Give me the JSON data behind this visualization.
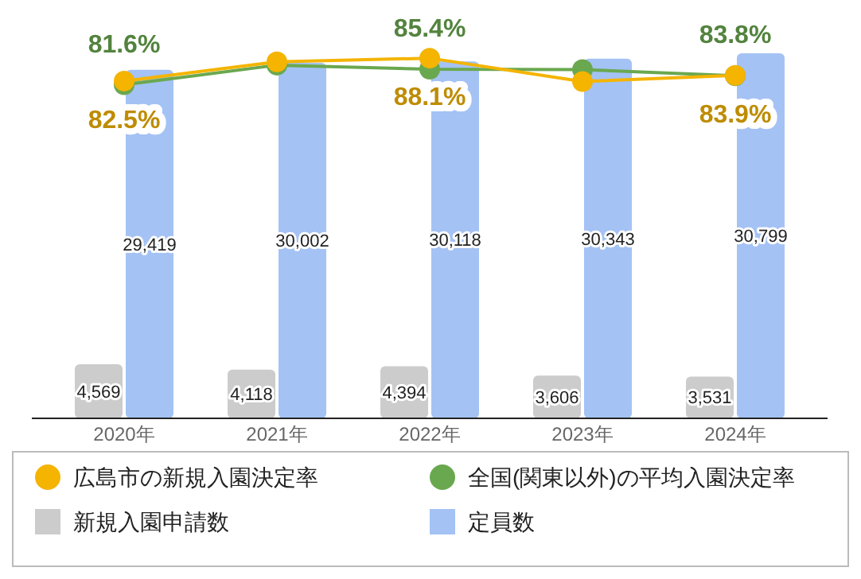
{
  "chart_data": {
    "type": "bar",
    "categories": [
      "2020年",
      "2021年",
      "2022年",
      "2023年",
      "2024年"
    ],
    "series": [
      {
        "name": "広島市の新規入園決定率",
        "type": "line",
        "axis": "y2",
        "color": "#f4b400",
        "values": [
          82.5,
          87.2,
          88.1,
          82.4,
          83.9
        ],
        "value_labels": [
          "82.5%",
          null,
          "88.1%",
          null,
          "83.9%"
        ]
      },
      {
        "name": "全国(関東以外)の平均入園決定率",
        "type": "line",
        "axis": "y2",
        "color": "#6aa84f",
        "values": [
          81.6,
          86.4,
          85.4,
          85.3,
          83.8
        ],
        "value_labels": [
          "81.6%",
          null,
          "85.4%",
          null,
          "83.8%"
        ]
      },
      {
        "name": "新規入園申請数",
        "color": "#cccccc",
        "values": [
          4569,
          4118,
          4394,
          3606,
          3531
        ],
        "value_labels": [
          "4,569",
          "4,118",
          "4,394",
          "3,606",
          "3,531"
        ]
      },
      {
        "name": "定員数",
        "color": "#a4c2f4",
        "values": [
          29419,
          30002,
          30118,
          30343,
          30799
        ],
        "value_labels": [
          "29,419",
          "30,002",
          "30,118",
          "30,343",
          "30,799"
        ]
      }
    ],
    "marker": "circle",
    "legend": "bottom"
  }
}
